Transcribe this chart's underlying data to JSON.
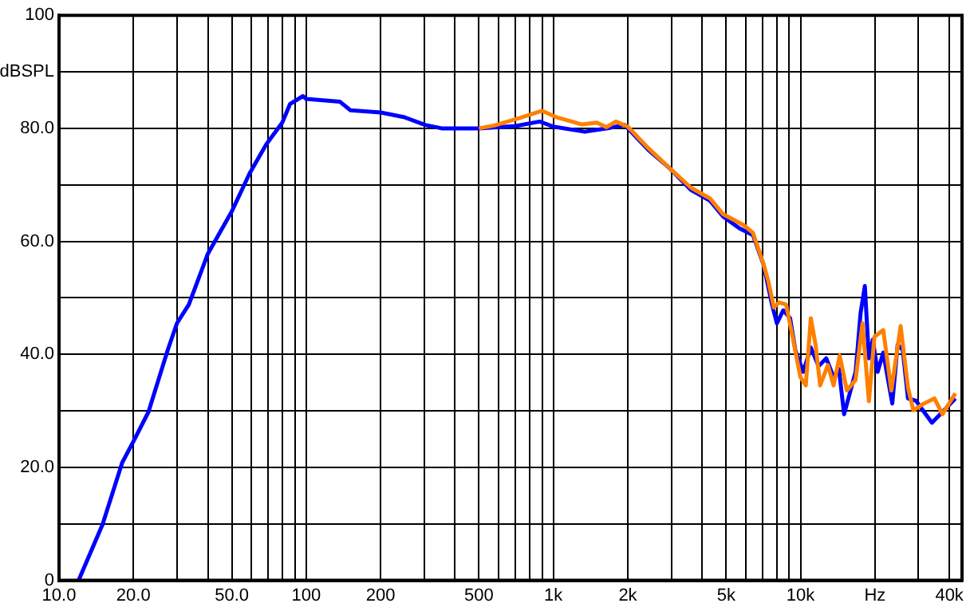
{
  "chart_data": {
    "type": "line",
    "ylabel": "dBSPL",
    "log": "x",
    "grid": true,
    "legend": false,
    "marker": "none",
    "line_style": "solid",
    "xlim": [
      10,
      45000
    ],
    "ylim": [
      0,
      100
    ],
    "xticks": [
      {
        "value": 10,
        "label": "10.0"
      },
      {
        "value": 20,
        "label": "20.0"
      },
      {
        "value": 30,
        "label": null
      },
      {
        "value": 40,
        "label": null
      },
      {
        "value": 50,
        "label": "50.0"
      },
      {
        "value": 60,
        "label": null
      },
      {
        "value": 70,
        "label": null
      },
      {
        "value": 80,
        "label": null
      },
      {
        "value": 90,
        "label": null
      },
      100,
      200,
      {
        "value": 300,
        "label": null
      },
      {
        "value": 400,
        "label": null
      },
      500,
      {
        "value": 600,
        "label": null
      },
      {
        "value": 700,
        "label": null
      },
      {
        "value": 800,
        "label": null
      },
      {
        "value": 900,
        "label": null
      },
      {
        "value": 1000,
        "label": "1k"
      },
      {
        "value": 2000,
        "label": "2k"
      },
      {
        "value": 3000,
        "label": null
      },
      {
        "value": 4000,
        "label": null
      },
      {
        "value": 5000,
        "label": "5k"
      },
      {
        "value": 6000,
        "label": null
      },
      {
        "value": 7000,
        "label": null
      },
      {
        "value": 8000,
        "label": null
      },
      {
        "value": 9000,
        "label": null
      },
      {
        "value": 10000,
        "label": "10k"
      },
      {
        "value": 20000,
        "label": "Hz"
      },
      {
        "value": 30000,
        "label": null
      },
      {
        "value": 40000,
        "label": "40k"
      }
    ],
    "yticks": [
      0,
      {
        "value": 10,
        "label": null
      },
      {
        "value": 20,
        "label": "20.0"
      },
      {
        "value": 30,
        "label": null
      },
      {
        "value": 40,
        "label": "40.0"
      },
      {
        "value": 50,
        "label": null
      },
      {
        "value": 60,
        "label": "60.0"
      },
      {
        "value": 70,
        "label": null
      },
      {
        "value": 80,
        "label": "80.0"
      },
      {
        "value": 90,
        "label": null
      },
      100
    ],
    "series": [
      {
        "color": "#ff8000",
        "x": [
          500,
          576,
          740,
          900,
          1040,
          1300,
          1500,
          1640,
          1790,
          2000,
          2420,
          2960,
          3600,
          4300,
          4860,
          5870,
          6420,
          7080,
          7400,
          7800,
          8190,
          8740,
          9240,
          9980,
          10500,
          11000,
          11500,
          12000,
          12900,
          13600,
          14400,
          15400,
          16700,
          17800,
          18900,
          19900,
          21600,
          23300,
          25400,
          27200,
          28600,
          31600,
          34800,
          37500,
          42300
        ],
        "values": [
          80.0,
          80.5,
          81.9,
          83.1,
          81.9,
          80.7,
          81.0,
          80.2,
          81.2,
          80.3,
          76.5,
          72.9,
          69.5,
          67.6,
          64.8,
          62.9,
          61.5,
          56.0,
          53.0,
          48.3,
          49.2,
          48.8,
          43.6,
          36.0,
          34.5,
          46.4,
          41.7,
          34.5,
          38.1,
          34.5,
          39.8,
          33.6,
          35.5,
          45.5,
          31.7,
          43.1,
          44.3,
          33.6,
          45.0,
          34.1,
          30.1,
          31.3,
          32.2,
          29.4,
          33.1
        ]
      },
      {
        "color": "#0000ff",
        "x": [
          12,
          15,
          18,
          20,
          23,
          27.5,
          30,
          33.5,
          40,
          50,
          59,
          69,
          80,
          86,
          97,
          100,
          137,
          151,
          200,
          248,
          303,
          353,
          500,
          703,
          880,
          1000,
          1340,
          1700,
          1940,
          2420,
          2960,
          3600,
          4300,
          4860,
          5660,
          6420,
          7080,
          7630,
          8020,
          8510,
          9070,
          9530,
          10250,
          11000,
          11830,
          12700,
          13600,
          14300,
          15000,
          16700,
          17500,
          18200,
          18900,
          19600,
          20500,
          21600,
          23500,
          24700,
          25900,
          27200,
          29300,
          31600,
          34000,
          37500,
          42300
        ],
        "values": [
          0,
          9.9,
          20.8,
          24.6,
          29.8,
          40.7,
          45.5,
          48.8,
          57.8,
          65.3,
          72.0,
          77.2,
          81.0,
          84.3,
          85.7,
          85.2,
          84.7,
          83.2,
          82.8,
          82.0,
          80.6,
          80.0,
          80.0,
          80.4,
          81.2,
          80.3,
          79.4,
          80.1,
          80.6,
          76.2,
          72.9,
          69.1,
          67.2,
          64.4,
          62.3,
          61.1,
          55.9,
          49.2,
          45.5,
          47.8,
          46.4,
          40.7,
          36.9,
          41.2,
          37.9,
          39.3,
          36.0,
          37.4,
          29.4,
          36.9,
          47.4,
          52.1,
          39.3,
          42.6,
          36.9,
          40.3,
          31.3,
          41.7,
          40.8,
          32.2,
          31.8,
          29.8,
          27.9,
          29.8,
          32.2
        ]
      }
    ]
  }
}
